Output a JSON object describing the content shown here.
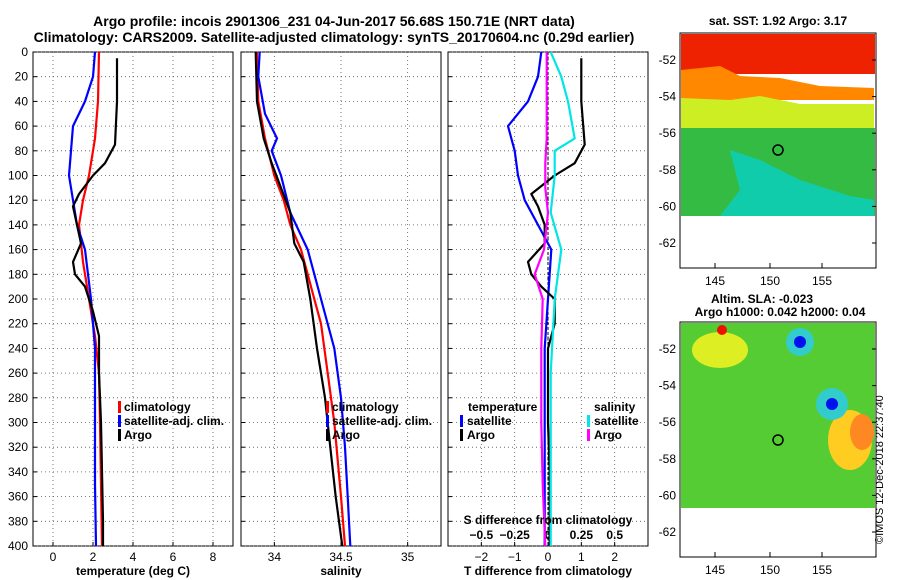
{
  "header": {
    "line1": "Argo profile: incois 2901306_231 04-Jun-2017 56.68S 150.71E (NRT data)",
    "line2": "Climatology: CARS2009. Satellite-adjusted climatology: synTS_20170604.nc (0.29d earlier)"
  },
  "colors": {
    "climatology": "#ff0000",
    "satellite": "#0000ff",
    "argo": "#000000",
    "sal_sat": "#00e5e5",
    "sal_argo": "#ff00ff"
  },
  "chart_data": [
    {
      "type": "line",
      "name": "temperature",
      "xlabel": "temperature (deg C)",
      "xlim": [
        -1,
        9
      ],
      "ylim": [
        0,
        400
      ],
      "xticks": [
        0,
        2,
        4,
        6,
        8
      ],
      "xticklabels": [
        "0",
        "2",
        "4",
        "6",
        "8"
      ],
      "yticks": [
        0,
        20,
        40,
        60,
        80,
        100,
        120,
        140,
        160,
        180,
        200,
        220,
        240,
        260,
        280,
        300,
        320,
        340,
        360,
        380,
        400
      ],
      "yticklabels": [
        "0",
        "20",
        "40",
        "60",
        "80",
        "100",
        "120",
        "140",
        "160",
        "180",
        "200",
        "220",
        "240",
        "260",
        "280",
        "300",
        "320",
        "340",
        "360",
        "380",
        "400"
      ],
      "legend": [
        "climatology",
        "satellite-adj. clim.",
        "Argo"
      ],
      "series": [
        {
          "name": "climatology",
          "color": "#ff0000",
          "points": [
            [
              2.3,
              0
            ],
            [
              2.25,
              40
            ],
            [
              2.1,
              70
            ],
            [
              1.8,
              100
            ],
            [
              1.5,
              120
            ],
            [
              1.3,
              140
            ],
            [
              1.5,
              170
            ],
            [
              1.8,
              200
            ],
            [
              2.1,
              230
            ],
            [
              2.3,
              260
            ],
            [
              2.35,
              300
            ],
            [
              2.4,
              350
            ],
            [
              2.45,
              400
            ]
          ]
        },
        {
          "name": "satellite-adj. clim.",
          "color": "#0000ff",
          "points": [
            [
              2.1,
              0
            ],
            [
              2.0,
              20
            ],
            [
              1.6,
              40
            ],
            [
              1.0,
              60
            ],
            [
              0.9,
              80
            ],
            [
              0.8,
              100
            ],
            [
              1.0,
              120
            ],
            [
              1.2,
              140
            ],
            [
              1.6,
              160
            ],
            [
              1.9,
              200
            ],
            [
              2.1,
              240
            ],
            [
              2.1,
              300
            ],
            [
              2.1,
              350
            ],
            [
              2.15,
              400
            ]
          ]
        },
        {
          "name": "Argo",
          "color": "#000000",
          "points": [
            [
              3.2,
              5
            ],
            [
              3.2,
              40
            ],
            [
              3.1,
              75
            ],
            [
              2.6,
              90
            ],
            [
              2.0,
              100
            ],
            [
              1.3,
              115
            ],
            [
              1.0,
              125
            ],
            [
              1.2,
              140
            ],
            [
              1.4,
              155
            ],
            [
              1.0,
              170
            ],
            [
              1.1,
              180
            ],
            [
              1.6,
              190
            ],
            [
              2.0,
              210
            ],
            [
              2.3,
              230
            ],
            [
              2.3,
              260
            ],
            [
              2.4,
              300
            ],
            [
              2.45,
              340
            ],
            [
              2.5,
              380
            ],
            [
              2.5,
              400
            ]
          ]
        }
      ]
    },
    {
      "type": "line",
      "name": "salinity",
      "xlabel": "salinity",
      "xlim": [
        33.75,
        35.25
      ],
      "ylim": [
        0,
        400
      ],
      "xticks": [
        34,
        34.5,
        35
      ],
      "xticklabels": [
        "34",
        "34.5",
        "35"
      ],
      "legend": [
        "climatology",
        "satellite-adj. clim.",
        "Argo"
      ],
      "series": [
        {
          "name": "climatology",
          "color": "#ff0000",
          "points": [
            [
              33.87,
              0
            ],
            [
              33.88,
              40
            ],
            [
              33.93,
              70
            ],
            [
              34.0,
              100
            ],
            [
              34.07,
              120
            ],
            [
              34.12,
              140
            ],
            [
              34.2,
              160
            ],
            [
              34.25,
              180
            ],
            [
              34.3,
              200
            ],
            [
              34.35,
              220
            ],
            [
              34.4,
              260
            ],
            [
              34.45,
              300
            ],
            [
              34.5,
              360
            ],
            [
              34.53,
              400
            ]
          ]
        },
        {
          "name": "satellite-adj. clim.",
          "color": "#0000ff",
          "points": [
            [
              33.89,
              0
            ],
            [
              33.88,
              20
            ],
            [
              33.93,
              50
            ],
            [
              34.02,
              70
            ],
            [
              33.98,
              80
            ],
            [
              34.05,
              100
            ],
            [
              34.12,
              130
            ],
            [
              34.25,
              160
            ],
            [
              34.35,
              200
            ],
            [
              34.45,
              240
            ],
            [
              34.5,
              280
            ],
            [
              34.53,
              320
            ],
            [
              34.55,
              360
            ],
            [
              34.57,
              400
            ]
          ]
        },
        {
          "name": "Argo",
          "color": "#000000",
          "points": [
            [
              33.86,
              0
            ],
            [
              33.87,
              40
            ],
            [
              33.92,
              70
            ],
            [
              33.98,
              90
            ],
            [
              34.05,
              110
            ],
            [
              34.12,
              130
            ],
            [
              34.15,
              155
            ],
            [
              34.22,
              170
            ],
            [
              34.27,
              200
            ],
            [
              34.32,
              240
            ],
            [
              34.38,
              280
            ],
            [
              34.42,
              320
            ],
            [
              34.46,
              360
            ],
            [
              34.51,
              400
            ]
          ]
        }
      ]
    },
    {
      "type": "line",
      "name": "difference",
      "xlabel": "T difference from climatology",
      "xlim": [
        -3,
        3
      ],
      "ylim": [
        0,
        400
      ],
      "xticks": [
        -2,
        -1,
        0,
        1,
        2
      ],
      "xticklabels": [
        "−2",
        "−1",
        "0",
        "1",
        "2"
      ],
      "sub_xlabel": "S difference from climatology",
      "sub_xticks": [
        -0.5,
        -0.25,
        0,
        0.25,
        0.5
      ],
      "sub_xticklabels": [
        "−0.5",
        "−0.25",
        "0",
        "0.25",
        "0.5"
      ],
      "legend_temperature_title": "temperature",
      "legend_salinity_title": "salinity",
      "legend_temperature": [
        "satellite",
        "Argo"
      ],
      "legend_salinity": [
        "satellite",
        "Argo"
      ],
      "series": [
        {
          "name": "T satellite",
          "color": "#0000ff",
          "points": [
            [
              -0.2,
              0
            ],
            [
              -0.3,
              20
            ],
            [
              -0.6,
              40
            ],
            [
              -1.2,
              60
            ],
            [
              -1.0,
              80
            ],
            [
              -0.9,
              100
            ],
            [
              -0.7,
              120
            ],
            [
              -0.3,
              140
            ],
            [
              0.1,
              160
            ],
            [
              0,
              200
            ],
            [
              -0.1,
              240
            ],
            [
              -0.1,
              300
            ],
            [
              -0.1,
              400
            ]
          ]
        },
        {
          "name": "T Argo",
          "color": "#000000",
          "points": [
            [
              1.0,
              5
            ],
            [
              1.0,
              40
            ],
            [
              1.1,
              75
            ],
            [
              0.8,
              90
            ],
            [
              0.2,
              100
            ],
            [
              -0.5,
              115
            ],
            [
              -0.3,
              125
            ],
            [
              -0.1,
              140
            ],
            [
              -0.1,
              155
            ],
            [
              -0.6,
              170
            ],
            [
              -0.5,
              180
            ],
            [
              -0.2,
              190
            ],
            [
              0.2,
              200
            ],
            [
              0.2,
              220
            ],
            [
              0,
              240
            ],
            [
              0,
              300
            ],
            [
              0.05,
              340
            ],
            [
              0.05,
              400
            ]
          ]
        },
        {
          "name": "S satellite",
          "color": "#00e5e5",
          "points": [
            [
              0.02,
              0
            ],
            [
              0.1,
              20
            ],
            [
              0.15,
              40
            ],
            [
              0.2,
              70
            ],
            [
              0.05,
              80
            ],
            [
              0.05,
              100
            ],
            [
              0.02,
              130
            ],
            [
              0.1,
              160
            ],
            [
              0.05,
              200
            ],
            [
              0.02,
              260
            ],
            [
              0.02,
              300
            ],
            [
              0.02,
              350
            ],
            [
              0.02,
              400
            ]
          ]
        },
        {
          "name": "S Argo",
          "color": "#ff00ff",
          "points": [
            [
              -0.01,
              0
            ],
            [
              -0.01,
              40
            ],
            [
              -0.01,
              70
            ],
            [
              -0.02,
              90
            ],
            [
              -0.02,
              110
            ],
            [
              0,
              130
            ],
            [
              -0.03,
              160
            ],
            [
              -0.1,
              180
            ],
            [
              -0.04,
              200
            ],
            [
              -0.05,
              240
            ],
            [
              -0.05,
              300
            ],
            [
              -0.04,
              350
            ],
            [
              -0.02,
              400
            ]
          ]
        }
      ]
    }
  ],
  "sst_map": {
    "title": "sat. SST: 1.92 Argo: 3.17",
    "xticklabels": [
      "145",
      "150",
      "155"
    ],
    "yticklabels": [
      "-52",
      "-54",
      "-56",
      "-58",
      "-60",
      "-62"
    ]
  },
  "sla_map": {
    "title_line1": "Altim. SLA: -0.023",
    "title_line2": "Argo h1000: 0.042 h2000: 0.04",
    "xticklabels": [
      "145",
      "150",
      "155"
    ],
    "yticklabels": [
      "-52",
      "-54",
      "-56",
      "-58",
      "-60",
      "-62"
    ]
  },
  "credit": "©IMOS 12-Dec-2018 22:37:40"
}
